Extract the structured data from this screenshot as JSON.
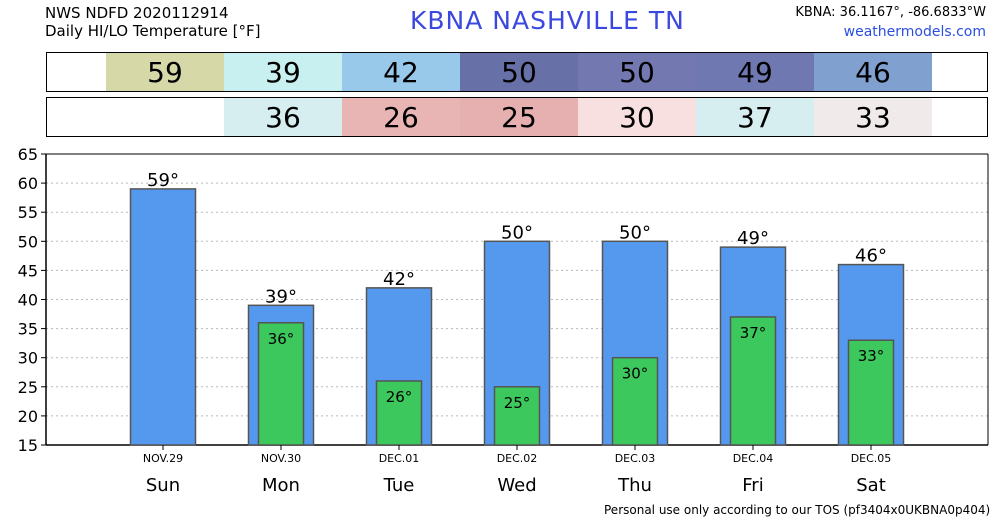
{
  "header": {
    "line1": "NWS NDFD 2020112914",
    "line2": "Daily HI/LO Temperature [°F]",
    "station": "KBNA  NASHVILLE     TN",
    "coords": "KBNA: 36.1167°, -86.6833°W",
    "site": "weathermodels.com"
  },
  "hi_strip": [
    {
      "value": "59",
      "color": "#d6d8a8"
    },
    {
      "value": "39",
      "color": "#c8f0f0"
    },
    {
      "value": "42",
      "color": "#98c8ea"
    },
    {
      "value": "50",
      "color": "#6870a8"
    },
    {
      "value": "50",
      "color": "#7478b0"
    },
    {
      "value": "49",
      "color": "#7078b2"
    },
    {
      "value": "46",
      "color": "#80a0d0"
    }
  ],
  "lo_strip": [
    {
      "value": "",
      "color": "#ffffff"
    },
    {
      "value": "36",
      "color": "#d6eef0"
    },
    {
      "value": "26",
      "color": "#e8b4b4"
    },
    {
      "value": "25",
      "color": "#e6b0b0"
    },
    {
      "value": "30",
      "color": "#f8e0e0"
    },
    {
      "value": "37",
      "color": "#d6eef0"
    },
    {
      "value": "33",
      "color": "#f0ebea"
    }
  ],
  "chart_data": {
    "type": "bar",
    "categories": [
      "Sun",
      "Mon",
      "Tue",
      "Wed",
      "Thu",
      "Fri",
      "Sat"
    ],
    "dates": [
      "NOV.29",
      "NOV.30",
      "DEC.01",
      "DEC.02",
      "DEC.03",
      "DEC.04",
      "DEC.05"
    ],
    "series": [
      {
        "values": [
          59,
          39,
          42,
          50,
          50,
          49,
          46
        ],
        "color": "#5599ee",
        "labels": [
          "59°",
          "39°",
          "42°",
          "50°",
          "50°",
          "49°",
          "46°"
        ]
      },
      {
        "values": [
          null,
          36,
          26,
          25,
          30,
          37,
          33
        ],
        "color": "#3cc85c",
        "labels": [
          "",
          "36°",
          "26°",
          "25°",
          "30°",
          "37°",
          "33°"
        ]
      }
    ],
    "ylim": [
      15,
      65
    ],
    "yticks": [
      "15",
      "20",
      "25",
      "30",
      "35",
      "40",
      "45",
      "50",
      "55",
      "60",
      "65"
    ],
    "grid": true
  },
  "footer": "Personal use only according to our TOS (pf3404x0UKBNA0p404)"
}
